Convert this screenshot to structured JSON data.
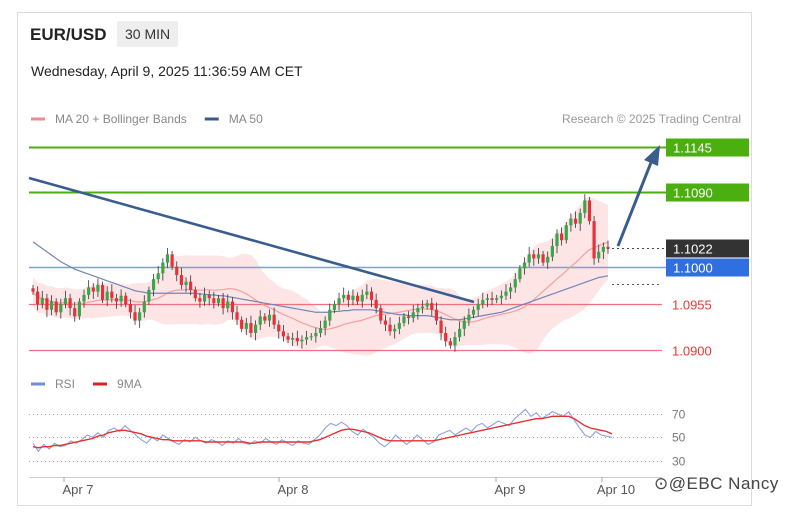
{
  "header": {
    "pair": "EUR/USD",
    "timeframe": "30 MIN",
    "datetime": "Wednesday, April 9, 2025 11:36:59 AM CET"
  },
  "watermark": "⊙@EBC Nancy",
  "colors": {
    "support_resistance_green": "#4caf10",
    "current_price_badge": "#333333",
    "ma50_blue_badge": "#2f6fe0",
    "red_level": "#f07080",
    "bollinger_fill": "#fde2e2",
    "trendline": "#3a5d8f",
    "candle_red": "#e8303a",
    "candle_green": "#3aa54a"
  },
  "chart_data": [
    {
      "type": "candlestick",
      "legend": [
        {
          "name": "MA 20 + Bollinger Bands",
          "color": "#f08a8a"
        },
        {
          "name": "MA 50",
          "color": "#3a5d8f"
        }
      ],
      "legend_position": "top-left",
      "credit": "Research © 2025 Trading Central",
      "x_ticks": [
        "Apr 7",
        "Apr 8",
        "Apr 9",
        "Apr 10"
      ],
      "ylim": [
        1.0885,
        1.1165
      ],
      "levels": [
        {
          "label": "1.1145",
          "value": 1.1145,
          "style": "green-badge"
        },
        {
          "label": "1.1090",
          "value": 1.109,
          "style": "green-badge"
        },
        {
          "label": "1.1022",
          "value": 1.1022,
          "style": "dark-badge"
        },
        {
          "label": "1.1000",
          "value": 1.1,
          "style": "blue-badge"
        },
        {
          "label": "1.0955",
          "value": 1.0955,
          "style": "red-text"
        },
        {
          "label": "1.0900",
          "value": 1.09,
          "style": "red-text"
        }
      ],
      "closes": [
        1.097,
        1.0955,
        1.0962,
        1.0948,
        1.0958,
        1.0945,
        1.0955,
        1.0962,
        1.095,
        1.094,
        1.0958,
        1.0966,
        1.0975,
        1.097,
        1.0978,
        1.096,
        1.097,
        1.0962,
        1.0958,
        1.0965,
        1.0955,
        1.0945,
        1.0935,
        1.0945,
        1.0958,
        1.0972,
        1.0985,
        1.0992,
        1.1005,
        1.1015,
        1.1,
        1.099,
        1.0978,
        1.0982,
        1.0972,
        1.0962,
        1.0958,
        1.0966,
        1.0962,
        1.0956,
        1.0962,
        1.095,
        1.0958,
        1.0945,
        1.0936,
        1.0925,
        1.0932,
        1.092,
        1.093,
        1.094,
        1.0935,
        1.0942,
        1.093,
        1.0922,
        1.0916,
        1.0912,
        1.0914,
        1.091,
        1.0912,
        1.0915,
        1.0916,
        1.092,
        1.0926,
        1.0935,
        1.0948,
        1.0955,
        1.0962,
        1.0966,
        1.096,
        1.0965,
        1.0958,
        1.0966,
        1.097,
        1.096,
        1.095,
        1.0935,
        1.093,
        1.0922,
        1.0925,
        1.0932,
        1.094,
        1.0938,
        1.0945,
        1.095,
        1.0952,
        1.0956,
        1.0948,
        1.0935,
        1.092,
        1.091,
        1.0905,
        1.0915,
        1.0925,
        1.0935,
        1.0942,
        1.0948,
        1.0955,
        1.096,
        1.0962,
        1.096,
        1.0962,
        1.0965,
        1.097,
        1.0975,
        1.0985,
        1.0998,
        1.1005,
        1.1015,
        1.101,
        1.1015,
        1.1005,
        1.1012,
        1.1025,
        1.104,
        1.1032,
        1.105,
        1.1058,
        1.1052,
        1.1065,
        1.108,
        1.1055,
        1.101,
        1.1018,
        1.1024,
        1.1022
      ],
      "ma50": [
        1.103,
        1.1026,
        1.1022,
        1.1018,
        1.1014,
        1.101,
        1.1006,
        1.1003,
        1.1,
        1.0997,
        1.0995,
        1.0993,
        1.0991,
        1.0989,
        1.0987,
        1.0985,
        1.0983,
        1.0981,
        1.0979,
        1.0977,
        1.0975,
        1.0973,
        1.0971,
        1.097,
        1.0969,
        1.0968,
        1.0968,
        1.0968,
        1.0968,
        1.0968,
        1.0968,
        1.0968,
        1.0968,
        1.0968,
        1.0968,
        1.0968,
        1.0967,
        1.0967,
        1.0966,
        1.0966,
        1.0965,
        1.0965,
        1.0964,
        1.0963,
        1.0962,
        1.0961,
        1.096,
        1.0959,
        1.0958,
        1.0957,
        1.0956,
        1.0955,
        1.0954,
        1.0953,
        1.0952,
        1.0951,
        1.095,
        1.0949,
        1.0948,
        1.0947,
        1.0946,
        1.0945,
        1.0945,
        1.0945,
        1.0945,
        1.0946,
        1.0946,
        1.0947,
        1.0947,
        1.0948,
        1.0948,
        1.0948,
        1.0948,
        1.0948,
        1.0947,
        1.0946,
        1.0945,
        1.0944,
        1.0943,
        1.0942,
        1.0942,
        1.0941,
        1.0941,
        1.0941,
        1.0941,
        1.0941,
        1.094,
        1.0939,
        1.0938,
        1.0937,
        1.0936,
        1.0936,
        1.0936,
        1.0937,
        1.0938,
        1.0939,
        1.094,
        1.0941,
        1.0942,
        1.0943,
        1.0944,
        1.0945,
        1.0947,
        1.0949,
        1.0951,
        1.0953,
        1.0955,
        1.0957,
        1.0959,
        1.0961,
        1.0963,
        1.0965,
        1.0967,
        1.0969,
        1.0971,
        1.0973,
        1.0975,
        1.0977,
        1.0979,
        1.0981,
        1.0983,
        1.0985,
        1.0987,
        1.0988,
        1.0989
      ]
    },
    {
      "type": "line",
      "legend": [
        {
          "name": "RSI",
          "color": "#6f8fd8"
        },
        {
          "name": "9MA",
          "color": "#e02020"
        }
      ],
      "y_ticks": [
        "70",
        "50",
        "30"
      ],
      "ylim": [
        22,
        82
      ],
      "rsi": [
        45,
        38,
        44,
        40,
        45,
        42,
        43,
        47,
        45,
        48,
        52,
        50,
        54,
        50,
        56,
        58,
        55,
        60,
        56,
        52,
        48,
        45,
        50,
        47,
        52,
        49,
        46,
        44,
        48,
        46,
        50,
        47,
        45,
        48,
        46,
        43,
        47,
        45,
        49,
        45,
        44,
        47,
        45,
        49,
        46,
        44,
        48,
        45,
        43,
        47,
        45,
        44,
        48,
        52,
        58,
        62,
        60,
        63,
        60,
        55,
        52,
        57,
        53,
        50,
        45,
        42,
        46,
        52,
        48,
        44,
        47,
        52,
        48,
        44,
        46,
        52,
        54,
        56,
        52,
        55,
        58,
        55,
        60,
        62,
        58,
        61,
        64,
        62,
        60,
        66,
        70,
        74,
        68,
        71,
        66,
        69,
        72,
        70,
        68,
        72,
        65,
        58,
        52,
        50,
        55,
        52,
        51,
        50
      ],
      "ma9": [
        42,
        41,
        42,
        42,
        43,
        43,
        44,
        45,
        46,
        47,
        48,
        49,
        51,
        52,
        54,
        55,
        56,
        56,
        55,
        54,
        53,
        51,
        50,
        49,
        48,
        48,
        47,
        47,
        47,
        47,
        47,
        47,
        46,
        46,
        46,
        46,
        46,
        46,
        46,
        46,
        45,
        45,
        46,
        46,
        46,
        46,
        46,
        46,
        46,
        46,
        46,
        46,
        47,
        48,
        50,
        52,
        54,
        56,
        57,
        57,
        56,
        55,
        54,
        52,
        50,
        48,
        47,
        47,
        47,
        47,
        47,
        47,
        47,
        47,
        47,
        48,
        49,
        50,
        51,
        52,
        53,
        54,
        55,
        56,
        57,
        58,
        59,
        60,
        61,
        62,
        63,
        64,
        65,
        66,
        66,
        67,
        68,
        68,
        68,
        68,
        66,
        63,
        60,
        58,
        57,
        56,
        55,
        53
      ]
    }
  ]
}
